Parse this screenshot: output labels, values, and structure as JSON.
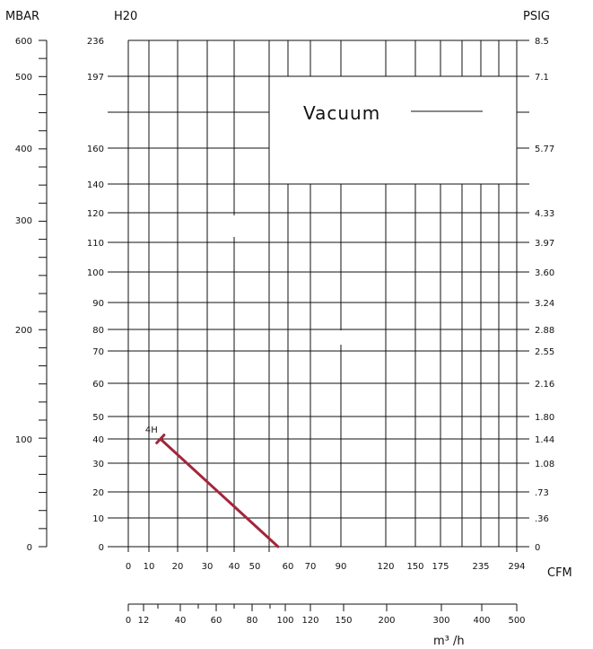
{
  "chart_data": {
    "type": "line",
    "title": "",
    "headers": {
      "mbar": "MBAR",
      "h2o": "H20",
      "psig": "PSIG"
    },
    "units": {
      "cfm": "CFM",
      "m3h": "m³ /h"
    },
    "vacuum_label": "Vacuum",
    "mbar_ticks": [
      "600",
      "500",
      "400",
      "300",
      "200",
      "100",
      "0"
    ],
    "h2o_ticks": [
      "236",
      "197",
      "160",
      "140",
      "120",
      "110",
      "100",
      "90",
      "80",
      "70",
      "60",
      "50",
      "40",
      "30",
      "20",
      "10",
      "0"
    ],
    "psig_ticks": [
      "8.5",
      "7.1",
      "5.77",
      "4.33",
      "3.97",
      "3.60",
      "3.24",
      "2.88",
      "2.55",
      "2.16",
      "1.80",
      "1.44",
      "1.08",
      ".73",
      ".36",
      "0"
    ],
    "cfm_ticks": [
      "0",
      "10",
      "20",
      "30",
      "40",
      "50",
      "60",
      "70",
      "90",
      "120",
      "150",
      "175",
      "235",
      "294"
    ],
    "m3h_ticks": [
      "0",
      "12",
      "40",
      "60",
      "80",
      "100",
      "120",
      "150",
      "200",
      "300",
      "400",
      "500"
    ],
    "series": [
      {
        "name": "4H",
        "color": "#a3263a",
        "points": [
          {
            "cfm": 14,
            "h2o": 40
          },
          {
            "cfm": 57,
            "h2o": 0
          }
        ]
      }
    ]
  }
}
